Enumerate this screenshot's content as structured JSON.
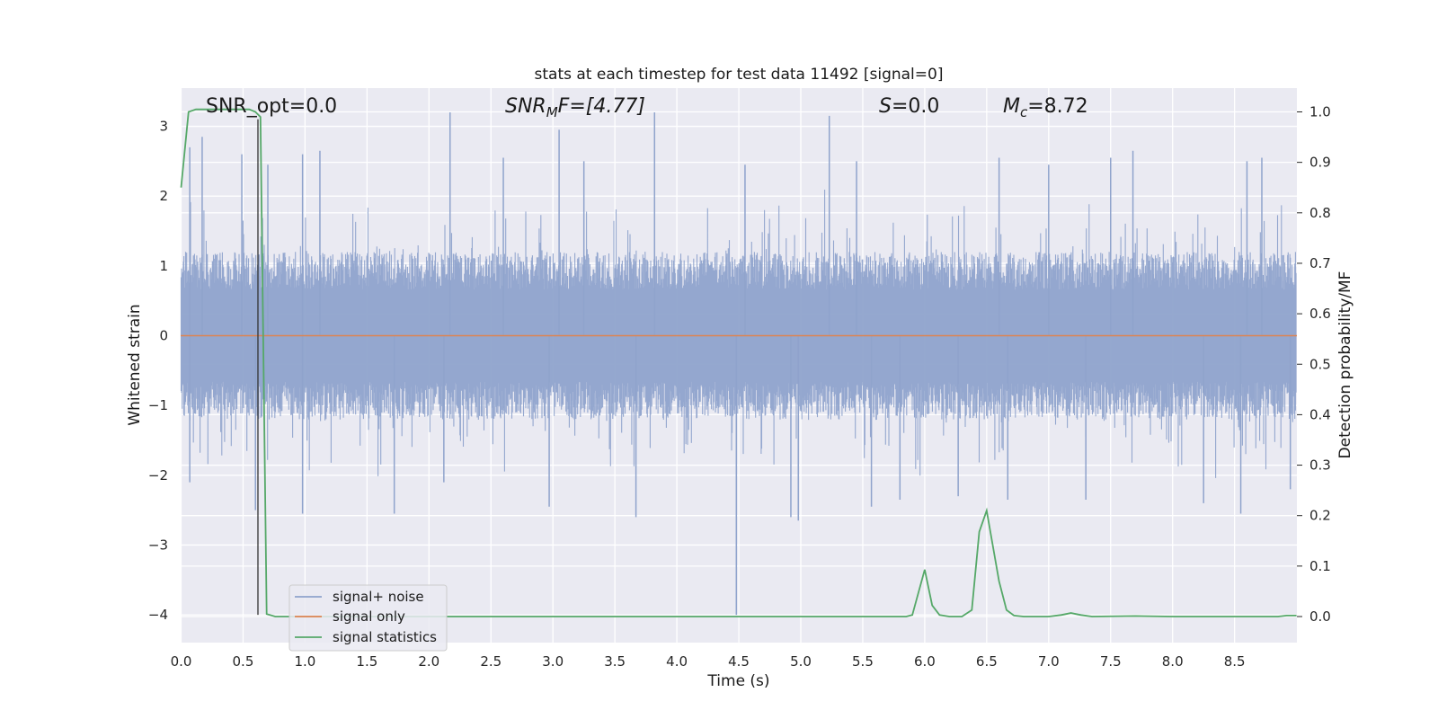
{
  "chart_data": {
    "type": "line",
    "title": "stats at each timestep for test data 11492 [signal=0]",
    "xlabel": "Time (s)",
    "ylabel": "Whitened strain",
    "y2label": "Detection probability/MF",
    "xlim": [
      0.0,
      9.0
    ],
    "ylim": [
      -4.35,
      3.55
    ],
    "y2lim": [
      -0.047,
      1.047
    ],
    "x_ticks": [
      "0.0",
      "0.5",
      "1.0",
      "1.5",
      "2.0",
      "2.5",
      "3.0",
      "3.5",
      "4.0",
      "4.5",
      "5.0",
      "5.5",
      "6.0",
      "6.5",
      "7.0",
      "7.5",
      "8.0",
      "8.5"
    ],
    "y_ticks": [
      "3",
      "2",
      "1",
      "0",
      "−1",
      "−2",
      "−3",
      "−4"
    ],
    "y2_ticks": [
      "1.0",
      "0.9",
      "0.8",
      "0.7",
      "0.6",
      "0.5",
      "0.4",
      "0.3",
      "0.2",
      "0.1",
      "0.0"
    ],
    "grid": true,
    "legend_position": "lower-left",
    "annotations": {
      "snr_opt": "SNR_opt=0.0",
      "snr_mf_base": "SNR",
      "snr_mf_sub": "M",
      "snr_mf_rest": "F=[4.77]",
      "s_var": "S",
      "s_rest": "=0.0",
      "mc_var": "M",
      "mc_sub": "c",
      "mc_rest": "=8.72"
    },
    "marker_line_x": 0.62,
    "series": [
      {
        "name": "signal+ noise",
        "color": "#8fa3cc",
        "kind": "noise",
        "envelope_typical": 1.2,
        "peaks": [
          {
            "x": 0.07,
            "y": 2.7
          },
          {
            "x": 0.17,
            "y": 2.85
          },
          {
            "x": 0.49,
            "y": 2.6
          },
          {
            "x": 0.7,
            "y": 2.45
          },
          {
            "x": 0.98,
            "y": 2.6
          },
          {
            "x": 1.12,
            "y": 2.65
          },
          {
            "x": 2.17,
            "y": 3.2
          },
          {
            "x": 2.6,
            "y": 2.55
          },
          {
            "x": 3.05,
            "y": 2.95
          },
          {
            "x": 3.25,
            "y": 2.5
          },
          {
            "x": 3.82,
            "y": 3.2
          },
          {
            "x": 4.55,
            "y": 2.45
          },
          {
            "x": 5.23,
            "y": 3.15
          },
          {
            "x": 5.45,
            "y": 2.5
          },
          {
            "x": 6.6,
            "y": 2.55
          },
          {
            "x": 7.0,
            "y": 2.45
          },
          {
            "x": 7.5,
            "y": 2.55
          },
          {
            "x": 7.68,
            "y": 2.65
          },
          {
            "x": 8.6,
            "y": 2.5
          },
          {
            "x": 8.72,
            "y": 2.55
          },
          {
            "x": 0.07,
            "y": -2.1
          },
          {
            "x": 0.6,
            "y": -2.5
          },
          {
            "x": 0.98,
            "y": -2.55
          },
          {
            "x": 1.72,
            "y": -2.55
          },
          {
            "x": 2.12,
            "y": -2.1
          },
          {
            "x": 2.97,
            "y": -2.45
          },
          {
            "x": 3.67,
            "y": -2.6
          },
          {
            "x": 4.48,
            "y": -4.0
          },
          {
            "x": 4.92,
            "y": -2.6
          },
          {
            "x": 4.98,
            "y": -2.65
          },
          {
            "x": 5.57,
            "y": -2.45
          },
          {
            "x": 5.8,
            "y": -2.35
          },
          {
            "x": 6.27,
            "y": -2.3
          },
          {
            "x": 6.67,
            "y": -2.35
          },
          {
            "x": 7.3,
            "y": -2.35
          },
          {
            "x": 8.25,
            "y": -2.4
          },
          {
            "x": 8.55,
            "y": -2.55
          },
          {
            "x": 8.95,
            "y": -2.2
          }
        ]
      },
      {
        "name": "signal only",
        "color": "#dd8452",
        "kind": "constant",
        "value": 0.0
      },
      {
        "name": "signal statistics",
        "color": "#55a868",
        "kind": "line",
        "axis": "right",
        "x": [
          0.0,
          0.06,
          0.12,
          0.18,
          0.3,
          0.45,
          0.55,
          0.6,
          0.64,
          0.69,
          0.76,
          1.0,
          2.0,
          3.0,
          4.0,
          5.0,
          5.5,
          5.85,
          5.9,
          6.0,
          6.06,
          6.12,
          6.2,
          6.3,
          6.38,
          6.44,
          6.5,
          6.55,
          6.6,
          6.66,
          6.72,
          6.8,
          7.0,
          7.1,
          7.18,
          7.26,
          7.35,
          7.7,
          8.0,
          8.5,
          8.85,
          8.92,
          9.0
        ],
        "y": [
          0.85,
          1.0,
          1.005,
          1.005,
          1.005,
          1.005,
          1.005,
          1.0,
          0.99,
          0.005,
          0.0,
          0.0,
          0.0,
          0.0,
          0.0,
          0.0,
          0.0,
          0.0,
          0.003,
          0.093,
          0.022,
          0.003,
          0.0,
          0.0,
          0.013,
          0.168,
          0.21,
          0.14,
          0.07,
          0.013,
          0.002,
          0.0,
          0.0,
          0.003,
          0.007,
          0.003,
          0.0,
          0.001,
          0.0,
          0.0,
          0.0,
          0.002,
          0.002
        ]
      }
    ]
  }
}
